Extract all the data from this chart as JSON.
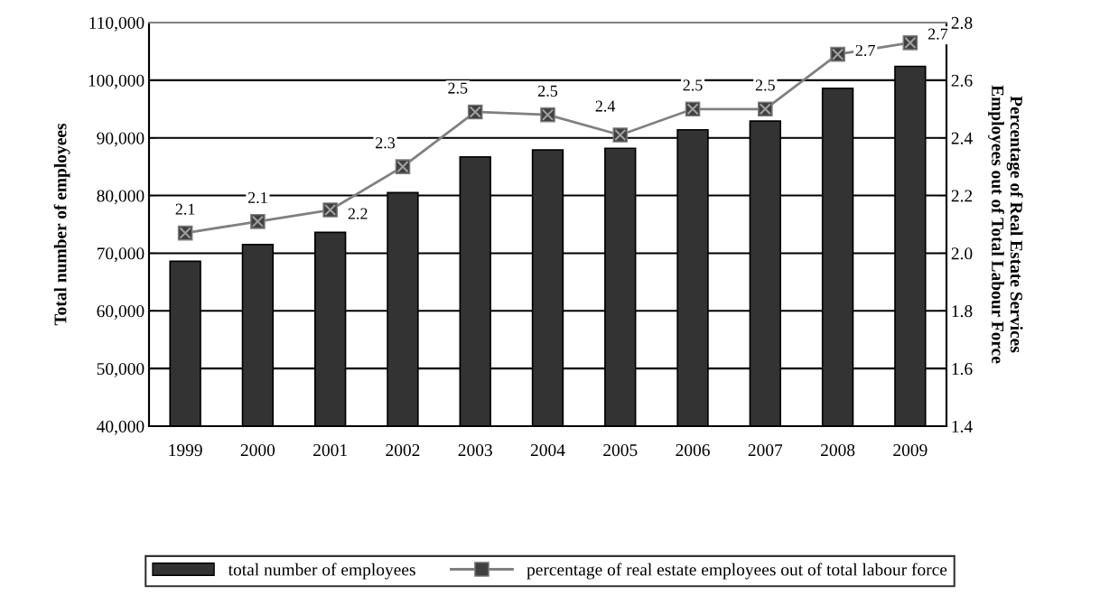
{
  "chart_data": {
    "type": "bar",
    "categories": [
      "1999",
      "2000",
      "2001",
      "2002",
      "2003",
      "2004",
      "2005",
      "2006",
      "2007",
      "2008",
      "2009"
    ],
    "series": [
      {
        "name": "total number of employees",
        "color": "#333333",
        "values": [
          68600,
          71500,
          73600,
          80500,
          86700,
          87900,
          88200,
          91400,
          92900,
          98600,
          102400
        ]
      },
      {
        "name": "percentage of real estate employees out of total labour force",
        "type": "line",
        "axis": "y2",
        "color": "#808080",
        "marker": "square",
        "values": [
          2.07,
          2.11,
          2.15,
          2.3,
          2.49,
          2.48,
          2.41,
          2.5,
          2.5,
          2.69,
          2.73
        ],
        "value_labels": [
          "2.1",
          "2.1",
          "2.2",
          "2.3",
          "2.5",
          "2.5",
          "2.4",
          "2.5",
          "2.5",
          "2.7",
          "2.7"
        ]
      }
    ],
    "ylabel": "Total number of employees",
    "y2label": "Percentage of Real Estate Services\nEmployees out of Total Labour Force",
    "ylim": [
      40000,
      110000
    ],
    "yticks": [
      {
        "value": 40000,
        "label": "40,000"
      },
      {
        "value": 50000,
        "label": "50,000"
      },
      {
        "value": 60000,
        "label": "60,000"
      },
      {
        "value": 70000,
        "label": "70,000"
      },
      {
        "value": 80000,
        "label": "80,000"
      },
      {
        "value": 90000,
        "label": "90,000"
      },
      {
        "value": 100000,
        "label": "100,000"
      },
      {
        "value": 110000,
        "label": "110,000"
      }
    ],
    "y2lim": [
      1.4,
      2.8
    ],
    "y2ticks": [
      "1.4",
      "1.6",
      "1.8",
      "2.0",
      "2.2",
      "2.4",
      "2.6",
      "2.8"
    ],
    "grid": "y",
    "legend": "bottom"
  }
}
